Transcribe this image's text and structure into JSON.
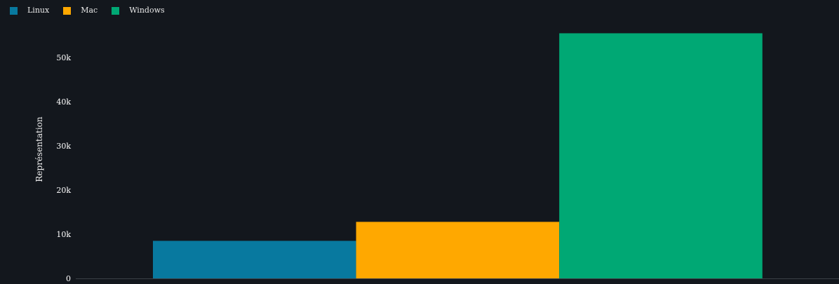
{
  "chart_data": {
    "type": "bar",
    "title": "",
    "xlabel": "",
    "ylabel": "Représentation",
    "ylim": [
      0,
      57000
    ],
    "categories": [
      "Linux",
      "Mac",
      "Windows"
    ],
    "values": [
      8500,
      12800,
      55500
    ],
    "ytick_values": [
      0,
      10000,
      20000,
      30000,
      40000,
      50000
    ],
    "ytick_labels": [
      "0",
      "10k",
      "20k",
      "30k",
      "40k",
      "50k"
    ],
    "grid": false,
    "legend_position": "top-left"
  },
  "colors": {
    "background": "#13171d",
    "axis": "#3a3f45",
    "series": [
      "#08799f",
      "#ffa800",
      "#00a874"
    ]
  }
}
